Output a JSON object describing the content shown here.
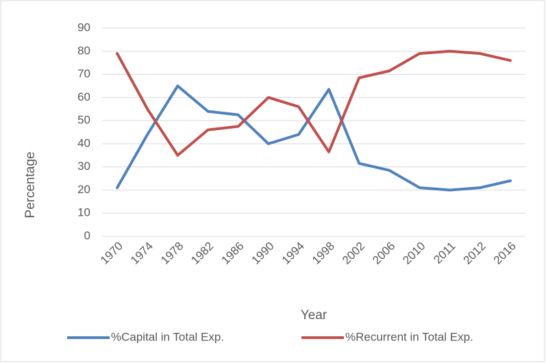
{
  "chart_data": {
    "type": "line",
    "x_label": "Year",
    "y_label": "Percentage",
    "categories": [
      "1970",
      "1974",
      "1978",
      "1982",
      "1986",
      "1990",
      "1994",
      "1998",
      "2002",
      "2006",
      "2010",
      "2011",
      "2012",
      "2016"
    ],
    "series": [
      {
        "name": "%Capital in Total Exp.",
        "color": "#4f81bd",
        "values": [
          21,
          44,
          65,
          54,
          52.5,
          40,
          44,
          63.5,
          31.5,
          28.5,
          21,
          20,
          21,
          24
        ]
      },
      {
        "name": "%Recurrent in Total Exp.",
        "color": "#c0504d",
        "values": [
          79,
          55,
          35,
          46,
          47.5,
          60,
          56,
          36.5,
          68.5,
          71.5,
          79,
          80,
          79,
          76
        ]
      }
    ],
    "ylim": [
      0,
      90
    ],
    "yticks": [
      0,
      10,
      20,
      30,
      40,
      50,
      60,
      70,
      80,
      90
    ],
    "grid": true,
    "legend": "bottom"
  }
}
